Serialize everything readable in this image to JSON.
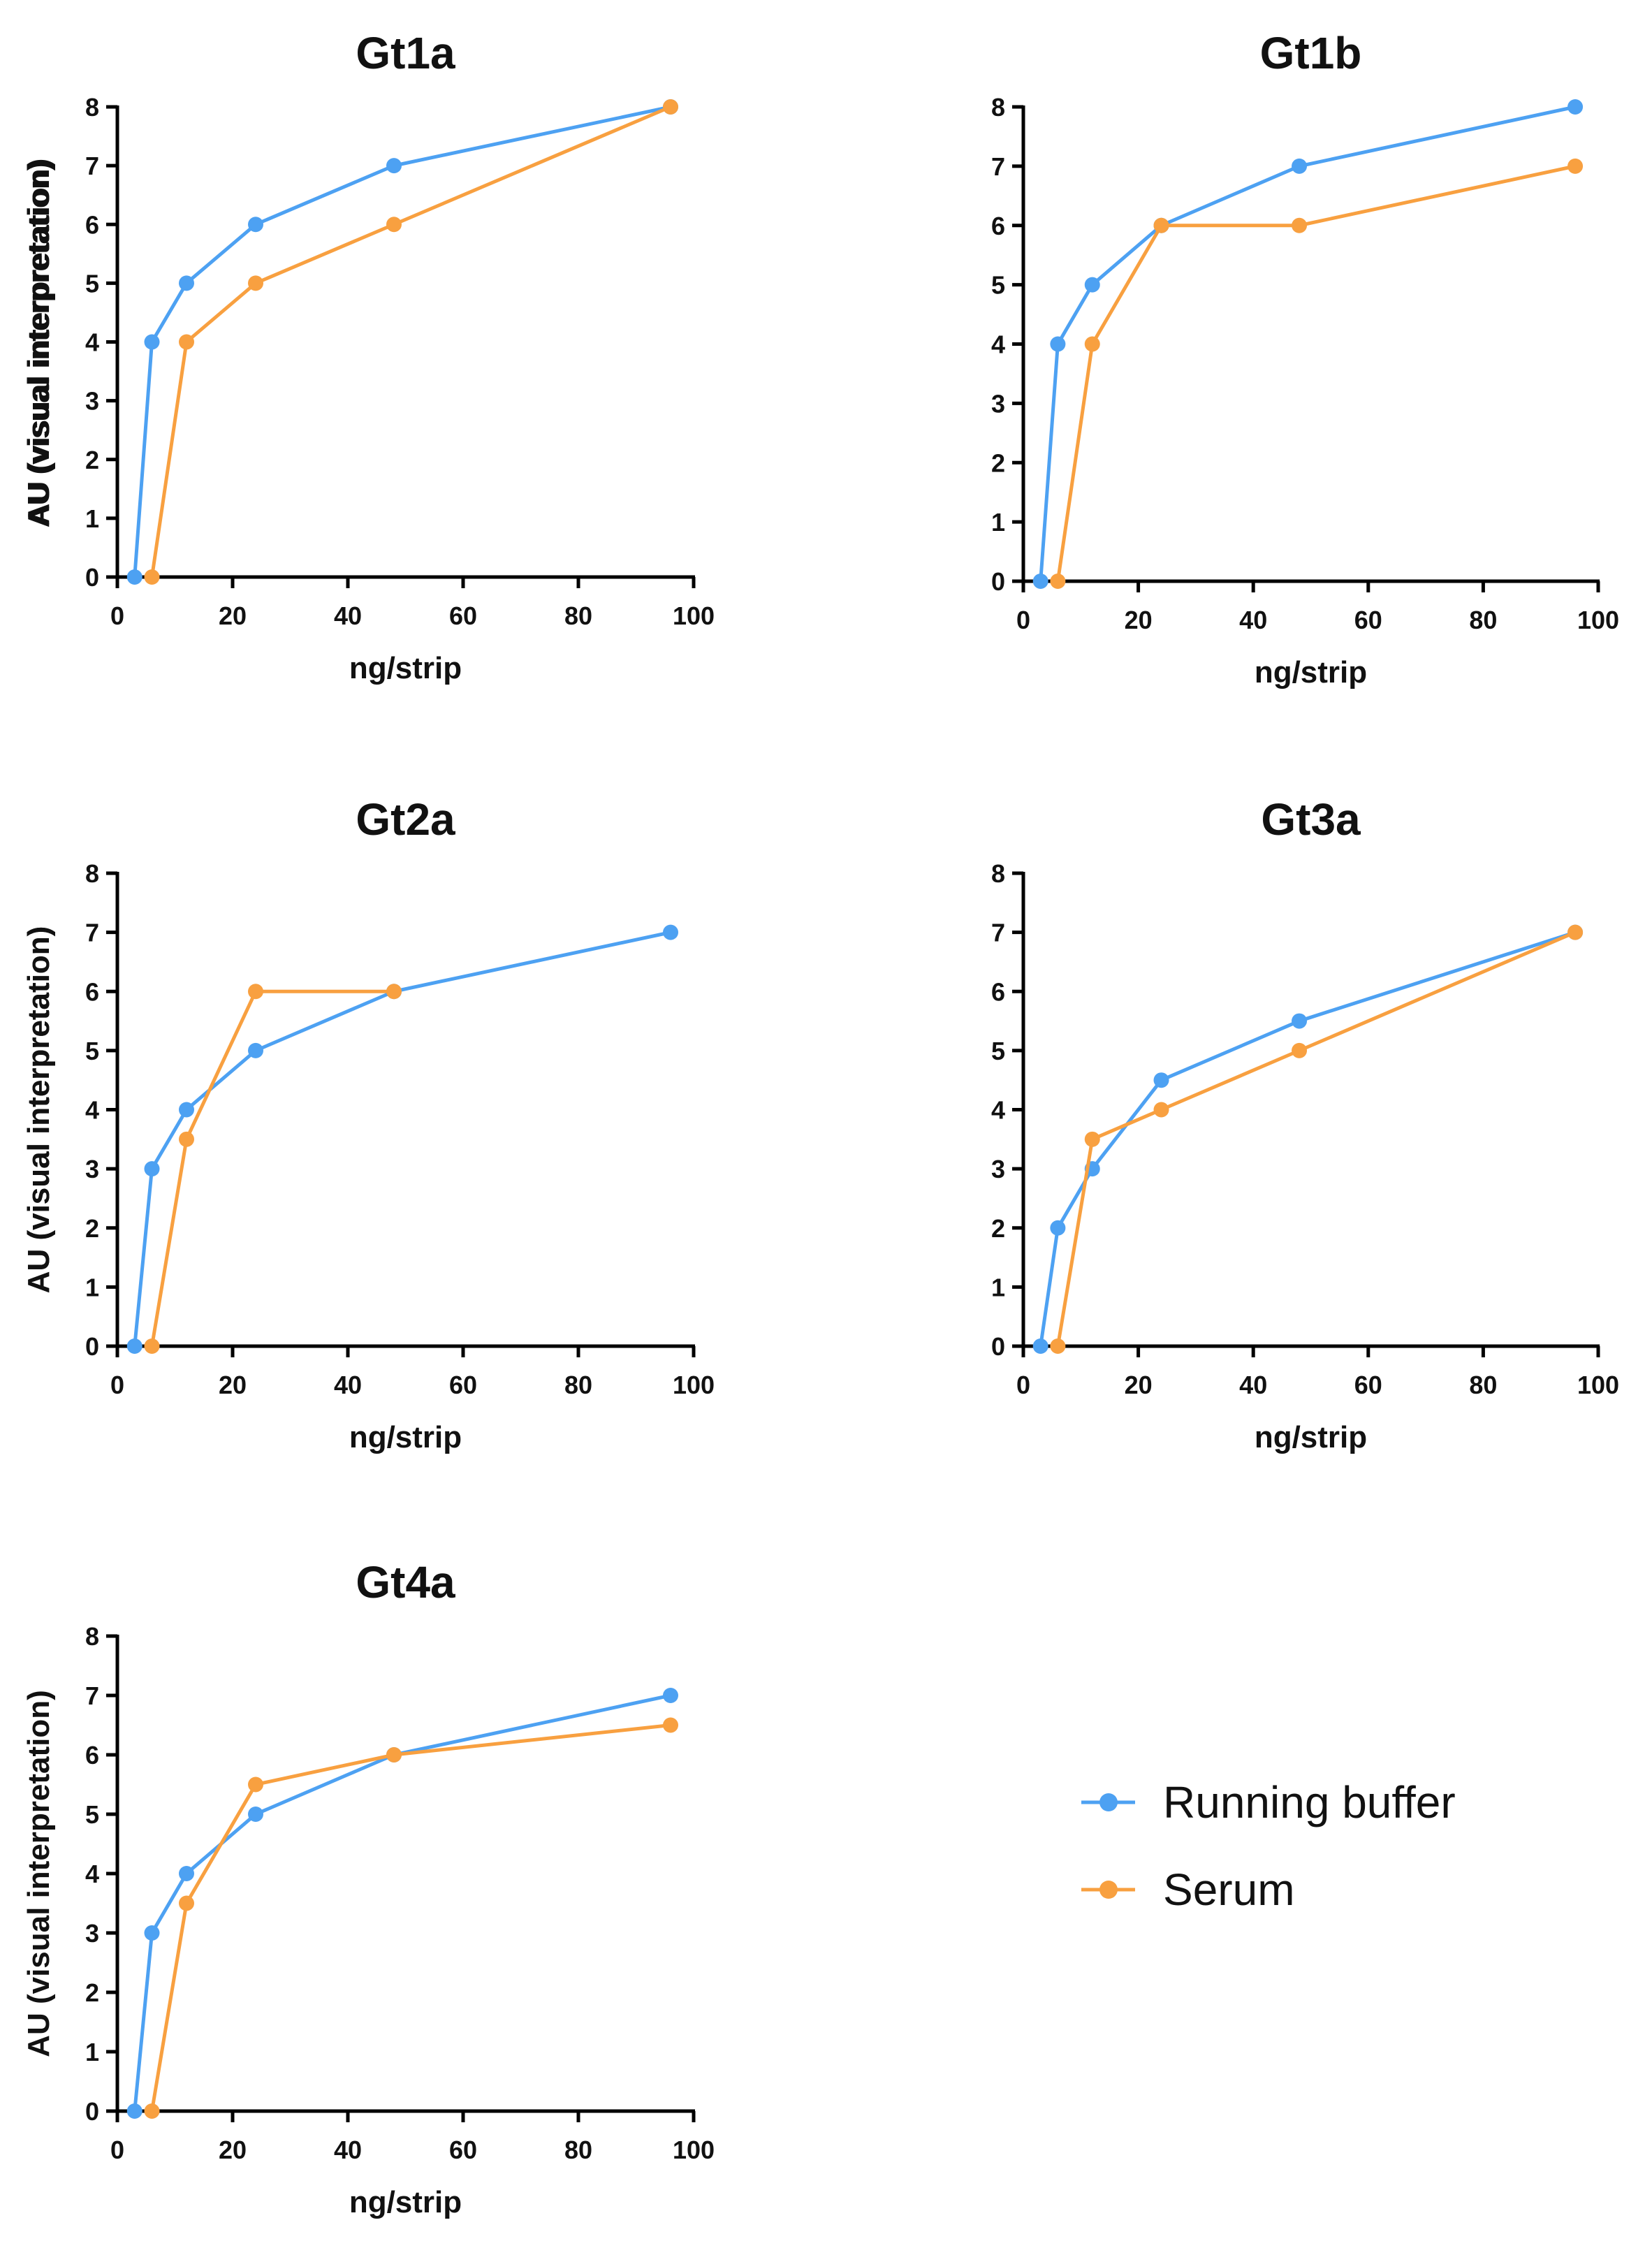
{
  "colors": {
    "running_buffer": "#4da1f2",
    "serum": "#f8a040"
  },
  "legend": {
    "items": [
      {
        "label": "Running buffer",
        "color_key": "running_buffer"
      },
      {
        "label": "Serum",
        "color_key": "serum"
      }
    ]
  },
  "chart_data": [
    {
      "type": "line",
      "title": "Gt1a",
      "xlabel": "ng/strip",
      "ylabel": "AU (visual interpretation)",
      "xlim": [
        0,
        100
      ],
      "ylim": [
        0,
        8
      ],
      "xticks": [
        0,
        20,
        40,
        60,
        80,
        100
      ],
      "yticks": [
        0,
        1,
        2,
        3,
        4,
        5,
        6,
        7,
        8
      ],
      "series": [
        {
          "name": "Running buffer",
          "x": [
            3,
            6,
            12,
            24,
            48,
            96
          ],
          "y": [
            0,
            4,
            5,
            6,
            7,
            8
          ]
        },
        {
          "name": "Serum",
          "x": [
            6,
            12,
            24,
            48,
            96
          ],
          "y": [
            0,
            4,
            5,
            6,
            8
          ]
        }
      ]
    },
    {
      "type": "line",
      "title": "Gt1b",
      "xlabel": "ng/strip",
      "ylabel": "AU (visual interpretation)",
      "xlim": [
        0,
        100
      ],
      "ylim": [
        0,
        8
      ],
      "xticks": [
        0,
        20,
        40,
        60,
        80,
        100
      ],
      "yticks": [
        0,
        1,
        2,
        3,
        4,
        5,
        6,
        7,
        8
      ],
      "series": [
        {
          "name": "Running buffer",
          "x": [
            3,
            6,
            12,
            24,
            48,
            96
          ],
          "y": [
            0,
            4,
            5,
            6,
            7,
            8
          ]
        },
        {
          "name": "Serum",
          "x": [
            6,
            12,
            24,
            48,
            96
          ],
          "y": [
            0,
            4,
            6,
            6,
            7
          ]
        }
      ]
    },
    {
      "type": "line",
      "title": "Gt2a",
      "xlabel": "ng/strip",
      "ylabel": "AU (visual interpretation)",
      "xlim": [
        0,
        100
      ],
      "ylim": [
        0,
        8
      ],
      "xticks": [
        0,
        20,
        40,
        60,
        80,
        100
      ],
      "yticks": [
        0,
        1,
        2,
        3,
        4,
        5,
        6,
        7,
        8
      ],
      "series": [
        {
          "name": "Running buffer",
          "x": [
            3,
            6,
            12,
            24,
            48,
            96
          ],
          "y": [
            0,
            3,
            4,
            5,
            6,
            7
          ]
        },
        {
          "name": "Serum",
          "x": [
            6,
            12,
            24,
            48
          ],
          "y": [
            0,
            3.5,
            6,
            6
          ]
        }
      ]
    },
    {
      "type": "line",
      "title": "Gt3a",
      "xlabel": "ng/strip",
      "ylabel": "AU (visual interpretation)",
      "xlim": [
        0,
        100
      ],
      "ylim": [
        0,
        8
      ],
      "xticks": [
        0,
        20,
        40,
        60,
        80,
        100
      ],
      "yticks": [
        0,
        1,
        2,
        3,
        4,
        5,
        6,
        7,
        8
      ],
      "series": [
        {
          "name": "Running buffer",
          "x": [
            3,
            6,
            12,
            24,
            48,
            96
          ],
          "y": [
            0,
            2,
            3,
            4.5,
            5.5,
            7
          ]
        },
        {
          "name": "Serum",
          "x": [
            6,
            12,
            24,
            48,
            96
          ],
          "y": [
            0,
            3.5,
            4,
            5,
            7
          ]
        }
      ]
    },
    {
      "type": "line",
      "title": "Gt4a",
      "xlabel": "ng/strip",
      "ylabel": "AU (visual interpretation)",
      "xlim": [
        0,
        100
      ],
      "ylim": [
        0,
        8
      ],
      "xticks": [
        0,
        20,
        40,
        60,
        80,
        100
      ],
      "yticks": [
        0,
        1,
        2,
        3,
        4,
        5,
        6,
        7,
        8
      ],
      "series": [
        {
          "name": "Running buffer",
          "x": [
            3,
            6,
            12,
            24,
            48,
            96
          ],
          "y": [
            0,
            3,
            4,
            5,
            6,
            7
          ]
        },
        {
          "name": "Serum",
          "x": [
            6,
            12,
            24,
            48,
            96
          ],
          "y": [
            0,
            3.5,
            5.5,
            6,
            6.5
          ]
        }
      ]
    }
  ]
}
